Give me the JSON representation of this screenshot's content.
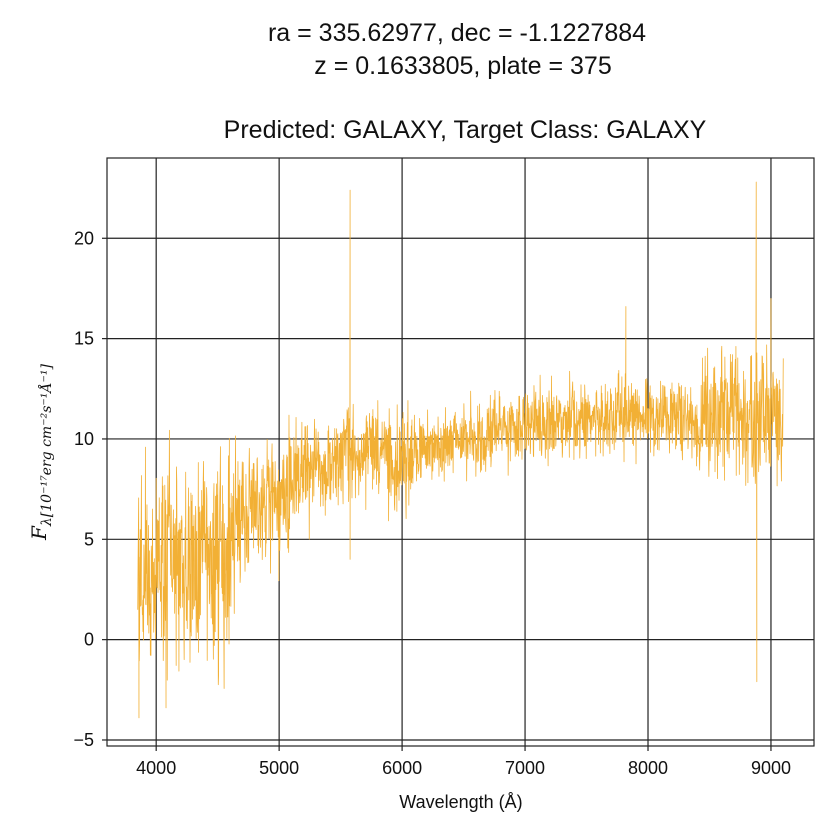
{
  "chart_data": {
    "type": "line",
    "title": {
      "line1": "ra = 335.62977, dec = -1.1227884",
      "line2": "z = 0.1633805, plate = 375",
      "line3": "Predicted: GALAXY, Target Class: GALAXY"
    },
    "xlabel": "Wavelength (Å)",
    "ylabel": {
      "main": "F",
      "sub": "λ[10⁻¹⁷erg cm⁻²s⁻¹Å⁻¹]"
    },
    "xlim": [
      3600,
      9350
    ],
    "ylim": [
      -5.3,
      24
    ],
    "x_ticks": [
      4000,
      5000,
      6000,
      7000,
      8000,
      9000
    ],
    "x_tick_labels": [
      "4000",
      "5000",
      "6000",
      "7000",
      "8000",
      "9000"
    ],
    "y_ticks": [
      -5,
      0,
      5,
      10,
      15,
      20
    ],
    "y_tick_labels": [
      "−5",
      "0",
      "5",
      "10",
      "15",
      "20"
    ],
    "grid": true,
    "series": [
      {
        "color": "#f2b035",
        "x_range": [
          3850,
          9100
        ],
        "continuum": {
          "x": [
            3850,
            4000,
            4200,
            4400,
            4600,
            4650,
            4800,
            5000,
            5200,
            5400,
            5600,
            5800,
            6000,
            6200,
            6500,
            6800,
            7000,
            7500,
            8000,
            8500,
            9000,
            9100
          ],
          "y": [
            3.5,
            3.8,
            3.6,
            3.9,
            3.7,
            6.5,
            6.5,
            6.7,
            8.3,
            8.9,
            9.2,
            9.4,
            8.8,
            9.6,
            10.0,
            10.4,
            10.7,
            10.9,
            11.1,
            11.0,
            11.2,
            11.0
          ]
        },
        "notable_points": [
          {
            "x": 5577,
            "y": 22.4
          },
          {
            "x": 5577,
            "y": 4.0
          },
          {
            "x": 7820,
            "y": 16.6
          },
          {
            "x": 8880,
            "y": 22.8
          },
          {
            "x": 8885,
            "y": -2.1
          },
          {
            "x": 9000,
            "y": 17.0
          },
          {
            "x": 3860,
            "y": -3.9
          },
          {
            "x": 4080,
            "y": -3.4
          }
        ]
      }
    ]
  }
}
